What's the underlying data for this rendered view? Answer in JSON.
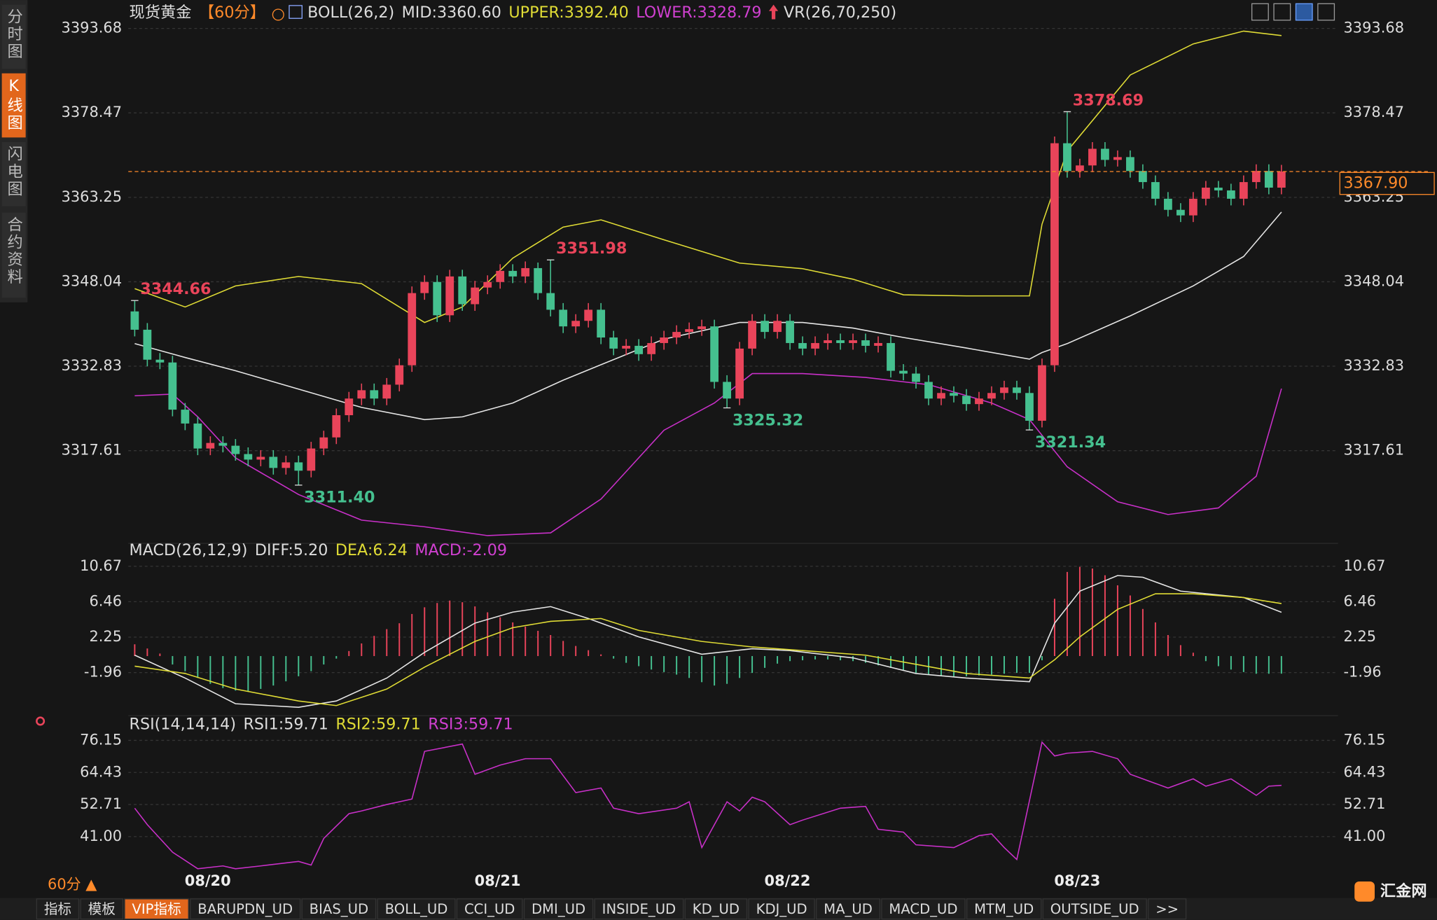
{
  "app": {
    "sidebar_tabs": [
      "分时图",
      "K线图",
      "闪电图",
      "合约资料"
    ],
    "active_sidebar_tab": 1,
    "bottom_tabs": [
      "指标",
      "模板",
      "VIP指标",
      "BARUPDN_UD",
      "BIAS_UD",
      "BOLL_UD",
      "CCI_UD",
      "DMI_UD",
      "INSIDE_UD",
      "KD_UD",
      "KDJ_UD",
      "MA_UD",
      "MACD_UD",
      "MTM_UD",
      "OUTSIDE_UD",
      ">>"
    ],
    "active_bottom_tab": 2,
    "period_selector": "60分 ▲",
    "logo": "汇金网"
  },
  "chart_data": [
    {
      "type": "candlestick",
      "header": [
        {
          "text": "现货黄金",
          "color": "#dddddd"
        },
        {
          "text": "【60分】",
          "color": "#ff8a2a"
        },
        {
          "text": "BOLL(26,2)",
          "color": "#dddddd"
        },
        {
          "text": "MID:3360.60",
          "color": "#dddddd"
        },
        {
          "text": "UPPER:3392.40",
          "color": "#e0dc35"
        },
        {
          "text": "LOWER:3328.79",
          "color": "#d040d0"
        },
        {
          "text": "VR(26,70,250)",
          "color": "#dddddd"
        }
      ],
      "up_color": "#e9445a",
      "down_color": "#45c08f",
      "grid": true,
      "ylim": [
        3301.4,
        3397.15
      ],
      "yticks": [
        3393.68,
        3378.47,
        3363.25,
        3348.04,
        3332.83,
        3317.61
      ],
      "xticks": [
        {
          "value": 5.8,
          "label": "08/20"
        },
        {
          "value": 28.8,
          "label": "08/21"
        },
        {
          "value": 51.8,
          "label": "08/22"
        },
        {
          "value": 74.8,
          "label": "08/23"
        }
      ],
      "open": [
        3342.7,
        3339.4,
        3334,
        3333.5,
        3325,
        3322.5,
        3318,
        3319,
        3318.5,
        3317,
        3316,
        3316.5,
        3314.5,
        3315.5,
        3314,
        3318,
        3320,
        3324,
        3327,
        3328.5,
        3327,
        3329.5,
        3333,
        3346,
        3348,
        3342,
        3349,
        3344,
        3347,
        3348,
        3350,
        3349,
        3350.5,
        3346,
        3343,
        3340,
        3341,
        3343,
        3338,
        3336,
        3336.5,
        3335,
        3337,
        3338,
        3339,
        3339.5,
        3340,
        3330,
        3327,
        3336,
        3341,
        3339,
        3341,
        3337,
        3336,
        3337,
        3337.5,
        3337,
        3337.5,
        3336.5,
        3337,
        3332,
        3331.5,
        3330,
        3327,
        3328,
        3327.5,
        3326,
        3327,
        3328,
        3329,
        3328,
        3323,
        3333,
        3373,
        3368,
        3369,
        3372,
        3370,
        3370.5,
        3368,
        3366,
        3363,
        3361,
        3360,
        3363,
        3365,
        3364.5,
        3363,
        3366,
        3368,
        3365
      ],
      "high": [
        3344.66,
        3340.6,
        3335.2,
        3334.7,
        3326.2,
        3323.7,
        3320.2,
        3320.2,
        3319.7,
        3318.2,
        3317.7,
        3317.7,
        3316.7,
        3316.7,
        3319.2,
        3321.2,
        3325.2,
        3328.2,
        3329.7,
        3329.7,
        3330.7,
        3334.2,
        3347.2,
        3349.2,
        3349.2,
        3350.2,
        3350.2,
        3348.2,
        3349.2,
        3351.2,
        3351.2,
        3351.7,
        3351.5,
        3351.98,
        3344.2,
        3342.2,
        3344.2,
        3344.2,
        3339.2,
        3337.7,
        3337.7,
        3338.2,
        3339.2,
        3340.2,
        3340.7,
        3341.2,
        3341.2,
        3331.2,
        3337.2,
        3342.2,
        3342.2,
        3342.2,
        3342.2,
        3338.2,
        3338.2,
        3338.7,
        3338.7,
        3338.7,
        3338.7,
        3338.2,
        3338.2,
        3333.2,
        3332.7,
        3331.2,
        3329.2,
        3329.2,
        3328.7,
        3328.2,
        3329.2,
        3330.2,
        3330.2,
        3329.2,
        3334.2,
        3374.2,
        3378.69,
        3370.2,
        3373.2,
        3373.2,
        3371.7,
        3371.7,
        3369.2,
        3367.2,
        3364.2,
        3362.2,
        3364.2,
        3366.2,
        3366.2,
        3365.7,
        3367.2,
        3369.2,
        3369.2,
        3369.1
      ],
      "low": [
        3338.2,
        3332.8,
        3332.3,
        3323.8,
        3321.3,
        3316.8,
        3316.8,
        3317.3,
        3315.8,
        3314.8,
        3314.8,
        3313.3,
        3313.3,
        3311.4,
        3312.8,
        3316.8,
        3318.8,
        3322.8,
        3325.8,
        3325.8,
        3325.8,
        3328.3,
        3331.8,
        3344.8,
        3340.8,
        3340.8,
        3342.8,
        3342.8,
        3345.8,
        3346.8,
        3347.8,
        3347.8,
        3344.8,
        3341.8,
        3338.8,
        3338.8,
        3339.8,
        3336.8,
        3334.8,
        3334.8,
        3333.8,
        3333.8,
        3335.8,
        3336.8,
        3337.8,
        3338.3,
        3328.8,
        3325.32,
        3325.8,
        3334.8,
        3337.8,
        3337.8,
        3335.8,
        3334.8,
        3334.8,
        3335.8,
        3335.8,
        3335.8,
        3335.3,
        3335.3,
        3330.8,
        3330.3,
        3328.8,
        3325.8,
        3325.8,
        3326.3,
        3324.8,
        3324.8,
        3325.8,
        3326.8,
        3326.8,
        3321.34,
        3321.8,
        3331.8,
        3366.8,
        3366.8,
        3367.8,
        3368.8,
        3368.8,
        3366.8,
        3364.8,
        3361.8,
        3359.8,
        3358.8,
        3358.8,
        3361.8,
        3363.3,
        3361.8,
        3361.8,
        3364.8,
        3363.8,
        3363.8
      ],
      "close": [
        3339.4,
        3334,
        3333.5,
        3325,
        3322.5,
        3318,
        3319,
        3318.5,
        3317,
        3316,
        3316.5,
        3314.5,
        3315.5,
        3314,
        3318,
        3320,
        3324,
        3327,
        3328.5,
        3327,
        3329.5,
        3333,
        3346,
        3348,
        3342,
        3349,
        3344,
        3347,
        3348,
        3350,
        3349,
        3350.5,
        3346,
        3343,
        3340,
        3341,
        3343,
        3338,
        3336,
        3336.5,
        3335,
        3337,
        3338,
        3339,
        3339.5,
        3340,
        3330,
        3327,
        3336,
        3341,
        3339,
        3341,
        3337,
        3336,
        3337,
        3337.5,
        3337,
        3337.5,
        3336.5,
        3337,
        3332,
        3331.5,
        3330,
        3327,
        3328,
        3327.5,
        3326,
        3327,
        3328,
        3329,
        3328,
        3323,
        3333,
        3373,
        3368,
        3369,
        3372,
        3370,
        3370.5,
        3368,
        3366,
        3363,
        3361,
        3360,
        3363,
        3365,
        3364.5,
        3363,
        3366,
        3368,
        3365,
        3367.9
      ],
      "series": [
        {
          "color": "#e0dc35",
          "x": [
            0,
            4,
            8,
            13,
            18,
            21,
            23,
            26,
            30,
            34,
            37,
            42,
            48,
            53,
            57,
            61,
            66,
            71,
            72,
            74,
            79,
            84,
            88,
            91
          ],
          "values": [
            3346.8,
            3343.5,
            3347.3,
            3349.0,
            3347.7,
            3343.5,
            3340.7,
            3343.5,
            3352.3,
            3357.9,
            3359.2,
            3355.6,
            3351.4,
            3350.4,
            3348.5,
            3345.7,
            3345.5,
            3345.5,
            3358.4,
            3371.6,
            3385.3,
            3390.9,
            3393.2,
            3392.4
          ]
        },
        {
          "color": "#e6e6e6",
          "x": [
            0,
            4,
            8,
            13,
            18,
            23,
            26,
            30,
            34,
            37,
            42,
            48,
            53,
            57,
            61,
            66,
            71,
            72,
            74,
            79,
            84,
            88,
            91
          ],
          "values": [
            3336.9,
            3334.4,
            3332.0,
            3328.7,
            3325.4,
            3323.2,
            3323.7,
            3326.2,
            3330.3,
            3333.1,
            3337.7,
            3340.7,
            3340.7,
            3339.7,
            3338.0,
            3336.1,
            3334.1,
            3335.3,
            3336.9,
            3341.9,
            3347.3,
            3352.6,
            3360.6
          ]
        },
        {
          "color": "#c930c9",
          "x": [
            0,
            3,
            5,
            8,
            13,
            18,
            23,
            28,
            33,
            37,
            42,
            46,
            49,
            53,
            58,
            63,
            68,
            71,
            74,
            78,
            82,
            86,
            89,
            91
          ],
          "values": [
            3327.5,
            3327.8,
            3323.7,
            3316.3,
            3309.7,
            3305.1,
            3303.9,
            3302.3,
            3302.8,
            3308.9,
            3321.3,
            3326.2,
            3331.5,
            3331.5,
            3330.8,
            3329.5,
            3326.2,
            3323.2,
            3314.7,
            3308.4,
            3306.1,
            3307.3,
            3313.0,
            3328.79
          ]
        }
      ],
      "annotations": [
        {
          "x": 0,
          "value": 3344.66,
          "label": "3344.66",
          "color": "#e9445a"
        },
        {
          "x": 13,
          "value": 3311.4,
          "label": "3311.40",
          "color": "#45c08f"
        },
        {
          "x": 33,
          "value": 3351.98,
          "label": "3351.98",
          "color": "#e9445a"
        },
        {
          "x": 47,
          "value": 3325.32,
          "label": "3325.32",
          "color": "#45c08f"
        },
        {
          "x": 71,
          "value": 3321.34,
          "label": "3321.34",
          "color": "#45c08f"
        },
        {
          "x": 74,
          "value": 3378.69,
          "label": "3378.69",
          "color": "#e9445a"
        }
      ],
      "last_price": {
        "value": 3367.9,
        "label": "3367.90",
        "color": "#ff8a2a"
      }
    },
    {
      "type": "macd",
      "header": [
        {
          "text": "MACD(26,12,9)",
          "color": "#dddddd"
        },
        {
          "text": "DIFF:5.20",
          "color": "#dddddd"
        },
        {
          "text": "DEA:6.24",
          "color": "#e0dc35"
        },
        {
          "text": "MACD:-2.09",
          "color": "#d040d0"
        }
      ],
      "up_color": "#e9445a",
      "down_color": "#45c08f",
      "grid": true,
      "ylim": [
        -6.75,
        11.32
      ],
      "yticks": [
        10.67,
        6.46,
        2.25,
        -1.96
      ],
      "histogram": [
        1.4,
        0.9,
        0.3,
        -1.0,
        -1.8,
        -2.6,
        -3.3,
        -3.8,
        -4.1,
        -4.2,
        -3.9,
        -3.5,
        -3.0,
        -2.4,
        -1.8,
        -1.0,
        -0.3,
        0.6,
        1.5,
        2.4,
        3.2,
        3.9,
        5.0,
        5.8,
        6.3,
        6.6,
        6.4,
        5.9,
        5.2,
        4.6,
        4.0,
        3.5,
        3.0,
        2.5,
        1.8,
        1.2,
        0.7,
        0.2,
        -0.3,
        -0.8,
        -1.2,
        -1.6,
        -1.9,
        -2.2,
        -2.6,
        -3.1,
        -3.5,
        -3.3,
        -2.6,
        -2.0,
        -1.4,
        -0.9,
        -0.6,
        -0.5,
        -0.4,
        -0.4,
        -0.5,
        -0.6,
        -0.8,
        -1.1,
        -1.4,
        -1.7,
        -2.0,
        -2.2,
        -2.3,
        -2.4,
        -2.4,
        -2.3,
        -2.2,
        -2.1,
        -2.0,
        -2.0,
        -0.5,
        6.8,
        10.0,
        10.6,
        10.4,
        9.6,
        8.4,
        7.2,
        5.6,
        4.0,
        2.5,
        1.3,
        0.4,
        -0.6,
        -1.2,
        -1.6,
        -1.9,
        -2.1,
        -2.1,
        -2.09
      ],
      "series": [
        {
          "color": "#e6e6e6",
          "x": [
            0,
            4,
            8,
            13,
            16,
            20,
            23,
            27,
            30,
            33,
            36,
            40,
            45,
            49,
            52,
            57,
            62,
            66,
            71,
            73,
            75,
            78,
            80,
            83,
            88,
            91
          ],
          "values": [
            0.11,
            -2.61,
            -5.66,
            -6.09,
            -5.33,
            -2.61,
            0.44,
            3.92,
            5.22,
            5.88,
            4.46,
            2.29,
            0.22,
            0.87,
            0.65,
            -0.22,
            -2.07,
            -2.61,
            -3.05,
            3.92,
            7.72,
            9.57,
            9.36,
            7.72,
            6.96,
            5.2
          ]
        },
        {
          "color": "#e0dc35",
          "x": [
            0,
            4,
            8,
            13,
            16,
            20,
            23,
            27,
            30,
            33,
            37,
            40,
            45,
            49,
            53,
            58,
            62,
            66,
            71,
            73,
            75,
            78,
            81,
            84,
            88,
            91
          ],
          "values": [
            -1.2,
            -2.07,
            -3.92,
            -5.33,
            -5.88,
            -3.92,
            -1.31,
            1.74,
            3.37,
            4.13,
            4.46,
            3.05,
            1.74,
            1.09,
            0.65,
            0.11,
            -0.98,
            -2.07,
            -2.61,
            -0.44,
            2.29,
            5.55,
            7.4,
            7.4,
            6.96,
            6.24
          ]
        }
      ]
    },
    {
      "type": "line",
      "header": [
        {
          "text": "RSI(14,14,14)",
          "color": "#dddddd"
        },
        {
          "text": "RSI1:59.71",
          "color": "#dddddd"
        },
        {
          "text": "RSI2:59.71",
          "color": "#e0dc35"
        },
        {
          "text": "RSI3:59.71",
          "color": "#d040d0"
        }
      ],
      "grid": true,
      "ylim": [
        28.61,
        78.83
      ],
      "yticks": [
        76.15,
        64.43,
        52.71,
        {
          "value": 41,
          "label": "41.00"
        }
      ],
      "series": [
        {
          "color": "#c930c9",
          "x": [
            0,
            1,
            3,
            5,
            7,
            8,
            10,
            13,
            14,
            15,
            17,
            18,
            20,
            22,
            23,
            26,
            27,
            29,
            31,
            33,
            35,
            37,
            38,
            40,
            43,
            44,
            45,
            46,
            47,
            48,
            49,
            50,
            52,
            53,
            56,
            58,
            59,
            61,
            62,
            65,
            67,
            68,
            69,
            70,
            72,
            73,
            74,
            76,
            78,
            79,
            81,
            82,
            84,
            85,
            87,
            89,
            90,
            91
          ],
          "values": [
            51.37,
            45.34,
            35.3,
            29.26,
            30.27,
            29.26,
            30.27,
            31.94,
            30.6,
            40.32,
            49.36,
            50.37,
            52.71,
            54.72,
            72.13,
            74.81,
            63.76,
            67.11,
            69.45,
            69.45,
            57.06,
            58.74,
            51.37,
            49.36,
            51.37,
            53.71,
            36.97,
            45.34,
            53.71,
            50.37,
            55.39,
            53.71,
            45.34,
            47.01,
            51.37,
            52.04,
            43.66,
            42.65,
            37.97,
            36.97,
            41.33,
            42.0,
            36.97,
            32.62,
            75.48,
            70.46,
            71.46,
            72.13,
            69.45,
            63.76,
            60.41,
            58.74,
            62.09,
            59.41,
            62.09,
            56.06,
            59.41,
            59.71
          ]
        }
      ]
    }
  ]
}
